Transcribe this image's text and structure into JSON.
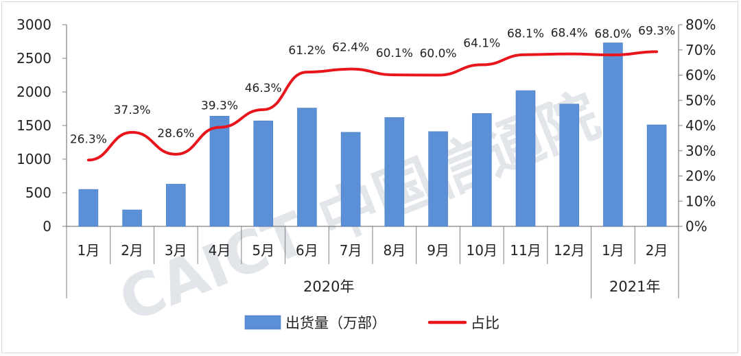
{
  "chart_data": {
    "type": "bar",
    "categories": [
      "1月",
      "2月",
      "3月",
      "4月",
      "5月",
      "6月",
      "7月",
      "8月",
      "9月",
      "10月",
      "11月",
      "12月",
      "1月",
      "2月"
    ],
    "groups": [
      {
        "label": "2020年",
        "count": 12
      },
      {
        "label": "2021年",
        "count": 2
      }
    ],
    "series": [
      {
        "name": "出货量（万部）",
        "type": "bar",
        "axis": "left",
        "values": [
          550,
          245,
          628,
          1640,
          1570,
          1760,
          1400,
          1620,
          1410,
          1680,
          2020,
          1820,
          2730,
          1510
        ]
      },
      {
        "name": "占比",
        "type": "line",
        "axis": "right",
        "values": [
          26.3,
          37.3,
          28.6,
          39.3,
          46.3,
          61.2,
          62.4,
          60.1,
          60.0,
          64.1,
          68.1,
          68.4,
          68.0,
          69.3
        ],
        "labels": [
          "26.3%",
          "37.3%",
          "28.6%",
          "39.3%",
          "46.3%",
          "61.2%",
          "62.4%",
          "60.1%",
          "60.0%",
          "64.1%",
          "68.1%",
          "68.4%",
          "68.0%",
          "69.3%"
        ]
      }
    ],
    "left_axis": {
      "ylim": [
        0,
        3000
      ],
      "ticks": [
        "0",
        "500",
        "1000",
        "1500",
        "2000",
        "2500",
        "3000"
      ]
    },
    "right_axis": {
      "ylim": [
        0,
        80
      ],
      "ticks": [
        "0%",
        "10%",
        "20%",
        "30%",
        "40%",
        "50%",
        "60%",
        "70%",
        "80%"
      ]
    },
    "grid": false,
    "legend_position": "bottom",
    "colors": {
      "bar": "#5b8fd6",
      "line": "#e8161c"
    }
  },
  "watermark": "CAICT 中国信通院"
}
